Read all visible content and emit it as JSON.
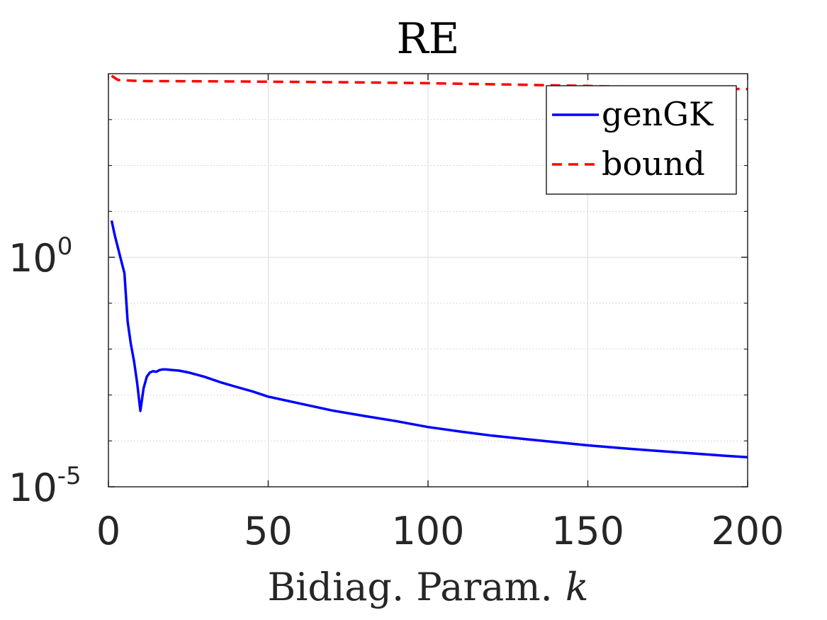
{
  "chart_data": {
    "type": "line",
    "title": "RE",
    "xlabel": "Bidiag. Param.",
    "xlabel_var": "k",
    "ylabel": "",
    "xlim": [
      0,
      200
    ],
    "ylim": [
      1e-05,
      10000
    ],
    "yscale": "log",
    "grid": true,
    "legend_position": "top-right",
    "x_ticks": [
      0,
      50,
      100,
      150,
      200
    ],
    "x_tick_labels": [
      "0",
      "50",
      "100",
      "150",
      "200"
    ],
    "y_minor_ticks": [
      0.0001,
      0.001,
      0.01,
      0.1,
      10,
      100,
      1000
    ],
    "y_ticks": [
      {
        "value": 1,
        "base": "10",
        "exp": "0"
      },
      {
        "value": 1e-05,
        "base": "10",
        "exp": "-5"
      }
    ],
    "series": [
      {
        "name": "genGK",
        "color": "#0000ff",
        "dash": "solid",
        "x": [
          1,
          2,
          3,
          4,
          5,
          6,
          7,
          8,
          9,
          10,
          11,
          12,
          13,
          14,
          15,
          16,
          17,
          18,
          20,
          22,
          25,
          30,
          35,
          40,
          45,
          50,
          60,
          70,
          80,
          90,
          100,
          110,
          120,
          130,
          140,
          150,
          160,
          170,
          180,
          190,
          200
        ],
        "y": [
          6.3,
          3.0,
          1.6,
          0.85,
          0.45,
          0.04,
          0.013,
          0.0055,
          0.0018,
          0.00045,
          0.0014,
          0.0025,
          0.0031,
          0.0033,
          0.0032,
          0.0035,
          0.0036,
          0.0036,
          0.0035,
          0.0034,
          0.0031,
          0.0025,
          0.0019,
          0.0015,
          0.0012,
          0.00092,
          0.00065,
          0.00046,
          0.00035,
          0.00027,
          0.0002,
          0.00016,
          0.00013,
          0.00011,
          9.4e-05,
          8e-05,
          7e-05,
          6.2e-05,
          5.5e-05,
          4.9e-05,
          4.4e-05
        ]
      },
      {
        "name": "bound",
        "color": "#ff0000",
        "dash": "dashed",
        "x": [
          1,
          3,
          10,
          25,
          50,
          75,
          100,
          125,
          150,
          175,
          200
        ],
        "y": [
          9000,
          7300,
          6900,
          6850,
          6700,
          6500,
          6200,
          5800,
          5400,
          5000,
          4600
        ]
      }
    ]
  }
}
